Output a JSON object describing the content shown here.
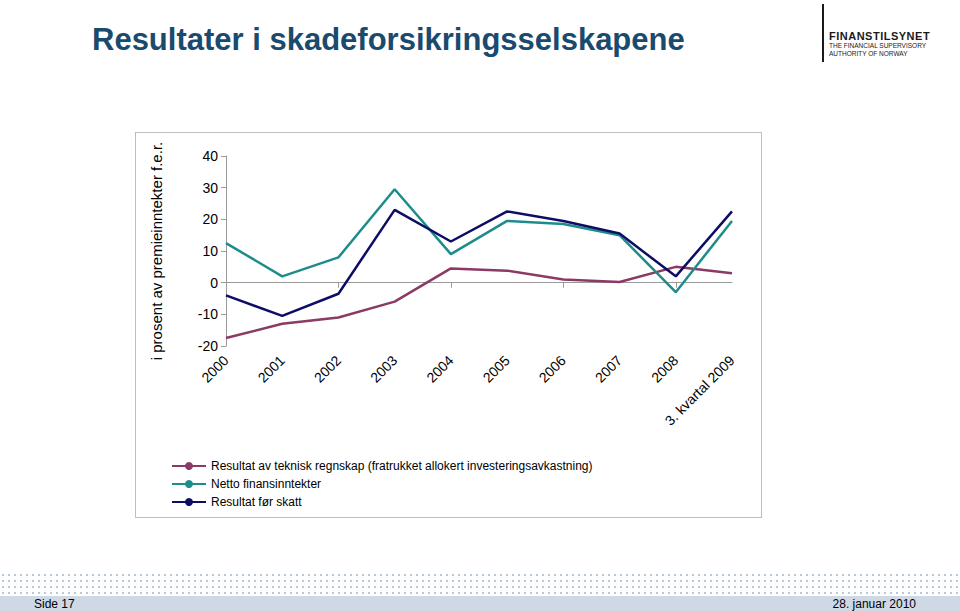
{
  "header": {
    "title": "Resultater i skadeforsikringsselskapene",
    "logo": [
      "FINANSTILSYNET",
      "THE FINANCIAL SUPERVISORY",
      "AUTHORITY OF NORWAY"
    ]
  },
  "footer": {
    "page": "Side 17",
    "date": "28. januar 2010"
  },
  "chart_data": {
    "type": "line",
    "y_label": "i prosent av premieinntekter f.e.r.",
    "categories": [
      "2000",
      "2001",
      "2002",
      "2003",
      "2004",
      "2005",
      "2006",
      "2007",
      "2008",
      "3. kvartal 2009"
    ],
    "series": [
      {
        "name": "Resultat av teknisk regnskap (fratrukket allokert investeringsavkastning)",
        "color": "#8b3a66",
        "values": [
          -17.5,
          -13,
          -11,
          -6,
          4.5,
          3.8,
          1,
          0.2,
          5,
          3
        ]
      },
      {
        "name": "Netto finansinntekter",
        "color": "#1f8c8c",
        "values": [
          12.5,
          2,
          8,
          29.5,
          9,
          19.5,
          18.5,
          15,
          -3,
          19.5
        ]
      },
      {
        "name": "Resultat før skatt",
        "color": "#0d0d66",
        "values": [
          -4,
          -10.5,
          -3.5,
          23,
          13,
          22.5,
          19.5,
          15.5,
          2,
          22.5
        ]
      }
    ],
    "ylim": [
      -20,
      40
    ],
    "yticks": [
      -20,
      -10,
      0,
      10,
      20,
      30,
      40
    ],
    "grid": false,
    "legend": "bottom-left"
  }
}
